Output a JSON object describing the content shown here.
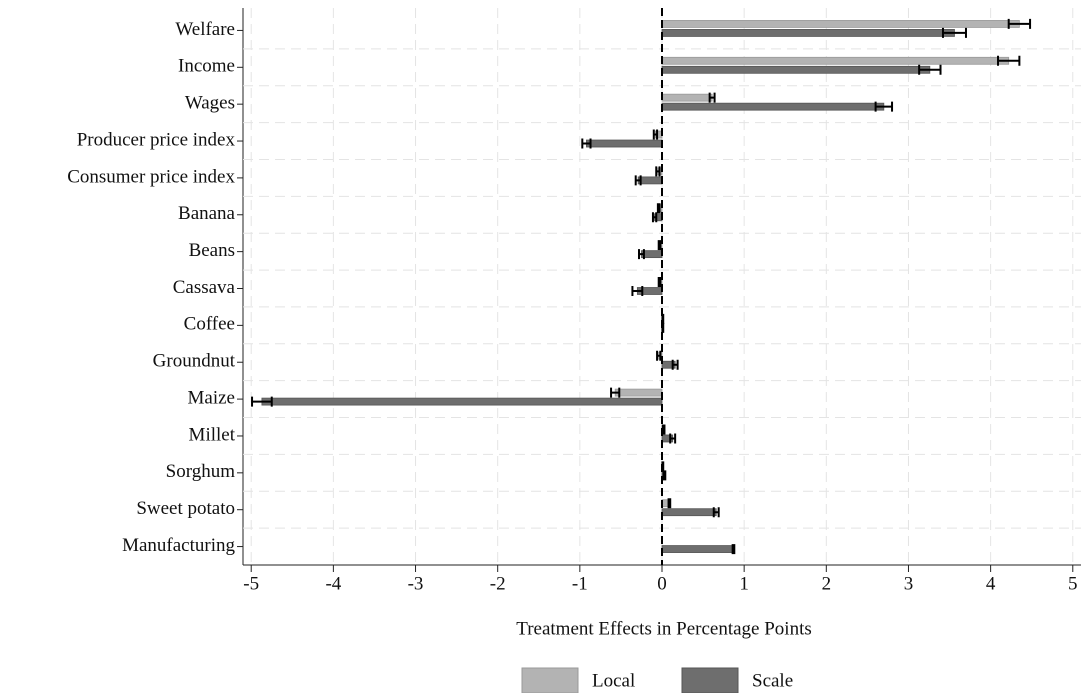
{
  "chart_data": {
    "type": "hbar",
    "x_label": "Treatment Effects in Percentage Points",
    "categories": [
      "Welfare",
      "Income",
      "Wages",
      "Producer price index",
      "Consumer price index",
      "Banana",
      "Beans",
      "Cassava",
      "Coffee",
      "Groundnut",
      "Maize",
      "Millet",
      "Sorghum",
      "Sweet potato",
      "Manufacturing"
    ],
    "series": [
      {
        "name": "Local",
        "color": "#b3b3b3",
        "values": [
          4.35,
          4.22,
          0.61,
          -0.08,
          -0.05,
          -0.04,
          -0.03,
          -0.03,
          0.01,
          -0.04,
          -0.57,
          0.02,
          0.01,
          0.09,
          null
        ],
        "errors": [
          0.13,
          0.13,
          0.03,
          0.02,
          0.02,
          0.01,
          0.01,
          0.01,
          0.005,
          0.02,
          0.05,
          0.01,
          0.005,
          0.01,
          null
        ]
      },
      {
        "name": "Scale",
        "color": "#6e6e6e",
        "values": [
          3.56,
          3.26,
          2.7,
          -0.92,
          -0.29,
          -0.09,
          -0.25,
          -0.3,
          0.01,
          0.16,
          -4.87,
          0.13,
          0.03,
          0.66,
          0.87
        ],
        "errors": [
          0.14,
          0.13,
          0.1,
          0.05,
          0.03,
          0.02,
          0.03,
          0.06,
          0.005,
          0.03,
          0.12,
          0.03,
          0.01,
          0.03,
          0.01
        ]
      }
    ],
    "xlim": [
      -5.1,
      5.1
    ],
    "xticks": [
      -5,
      -4,
      -3,
      -2,
      -1,
      0,
      1,
      2,
      3,
      4,
      5
    ],
    "grid": true
  }
}
